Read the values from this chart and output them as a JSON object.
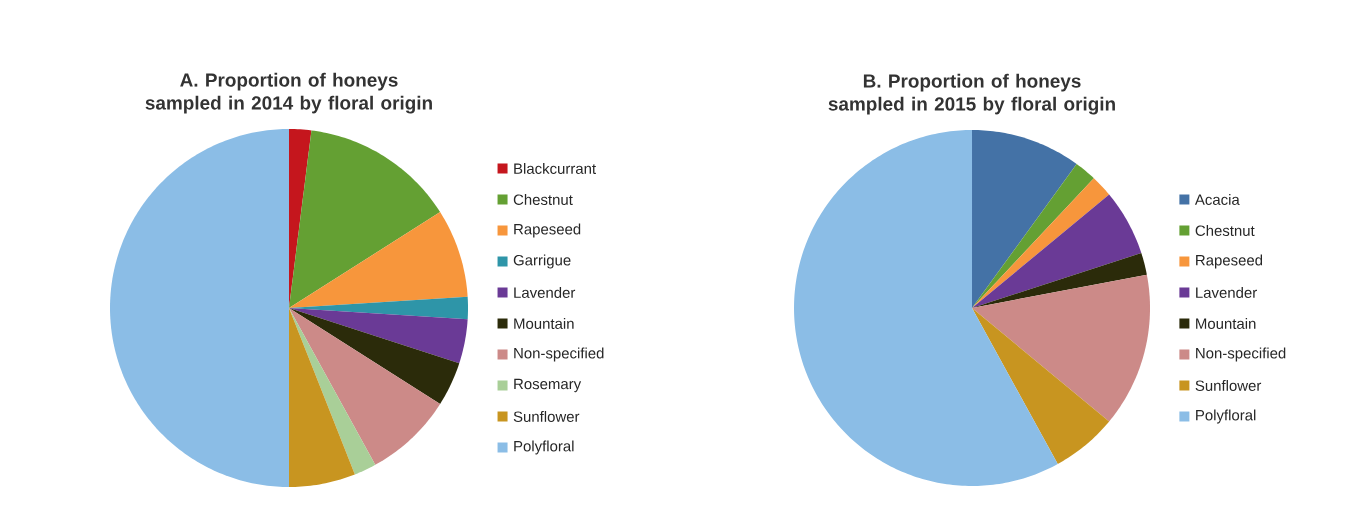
{
  "chart_data": [
    {
      "type": "pie",
      "title": "A. Proportion of honeys sampled in 2014 by floral origin",
      "legend": "right",
      "categories": [
        "Blackcurrant",
        "Chestnut",
        "Rapeseed",
        "Garrigue",
        "Lavender",
        "Mountain",
        "Non-specified",
        "Rosemary",
        "Sunflower",
        "Polyfloral"
      ],
      "values": [
        2,
        14,
        8,
        2,
        4,
        4,
        8,
        2,
        6,
        50
      ],
      "colors": [
        "#c5161d",
        "#64a033",
        "#f7963c",
        "#2e95a8",
        "#6a3a96",
        "#2b2b0a",
        "#cc8a88",
        "#a9cf98",
        "#c89520",
        "#8bbde6"
      ]
    },
    {
      "type": "pie",
      "title": "B. Proportion of honeys sampled in 2015 by floral origin",
      "legend": "right",
      "categories": [
        "Acacia",
        "Chestnut",
        "Rapeseed",
        "Lavender",
        "Mountain",
        "Non-specified",
        "Sunflower",
        "Polyfloral"
      ],
      "values": [
        10,
        2,
        2,
        6,
        2,
        14,
        6,
        58
      ],
      "colors": [
        "#4472a6",
        "#64a033",
        "#f7963c",
        "#6a3a96",
        "#2b2b0a",
        "#cc8a88",
        "#c89520",
        "#8bbde6"
      ]
    }
  ]
}
